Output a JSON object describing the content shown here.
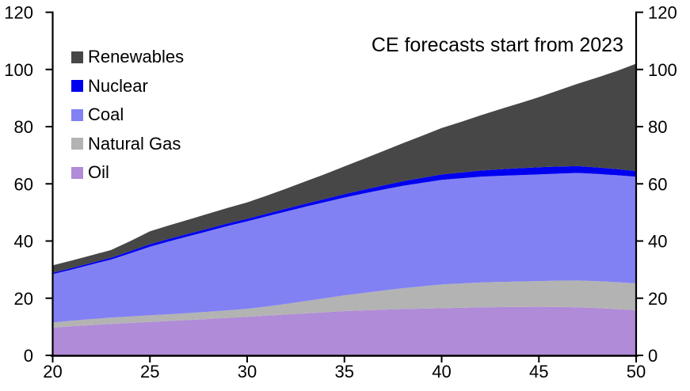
{
  "annotation": "CE forecasts start from 2023",
  "chart_data": {
    "type": "area",
    "stacked": true,
    "title": "",
    "xlabel": "",
    "ylabel": "",
    "grid": false,
    "dual_y_axis": true,
    "legend_position": "top-left",
    "x_range": [
      20,
      50
    ],
    "y_range": [
      0,
      120
    ],
    "x_ticks": [
      "20",
      "25",
      "30",
      "35",
      "40",
      "45",
      "50"
    ],
    "y_ticks": [
      "0",
      "20",
      "40",
      "60",
      "80",
      "100",
      "120"
    ],
    "x": [
      20,
      21,
      22,
      23,
      24,
      25,
      26,
      27,
      28,
      29,
      30,
      31,
      32,
      33,
      34,
      35,
      36,
      37,
      38,
      39,
      40,
      41,
      42,
      43,
      44,
      45,
      46,
      47,
      48,
      49,
      50
    ],
    "series": [
      {
        "name": "Oil",
        "color": "#b08bd8",
        "values": [
          9.7,
          10.2,
          10.6,
          11.0,
          11.35,
          11.7,
          12.05,
          12.4,
          12.75,
          13.1,
          13.5,
          13.9,
          14.3,
          14.7,
          15.1,
          15.5,
          15.75,
          16.0,
          16.2,
          16.35,
          16.5,
          16.65,
          16.8,
          16.9,
          16.95,
          17.0,
          16.95,
          16.8,
          16.55,
          16.2,
          15.8
        ]
      },
      {
        "name": "Natural Gas",
        "color": "#b3b3b3",
        "values": [
          1.8,
          1.95,
          2.1,
          2.2,
          2.25,
          2.3,
          2.35,
          2.4,
          2.5,
          2.65,
          2.8,
          3.2,
          3.7,
          4.3,
          4.9,
          5.5,
          6.1,
          6.7,
          7.3,
          7.8,
          8.3,
          8.5,
          8.7,
          8.8,
          8.9,
          9.0,
          9.2,
          9.4,
          9.4,
          9.4,
          9.4
        ]
      },
      {
        "name": "Coal",
        "color": "#8181f3",
        "values": [
          16.9,
          17.9,
          19.1,
          20.3,
          22.1,
          24.0,
          25.5,
          26.9,
          28.2,
          29.5,
          30.6,
          31.5,
          32.3,
          33.0,
          33.6,
          34.2,
          34.8,
          35.3,
          35.8,
          36.2,
          36.6,
          36.8,
          37.0,
          37.1,
          37.2,
          37.3,
          37.4,
          37.6,
          37.5,
          37.4,
          37.3
        ]
      },
      {
        "name": "Nuclear",
        "color": "#0000f0",
        "values": [
          0.5,
          0.55,
          0.6,
          0.65,
          0.8,
          0.9,
          0.9,
          0.9,
          0.9,
          0.9,
          0.9,
          0.95,
          1.0,
          1.05,
          1.1,
          1.2,
          1.3,
          1.45,
          1.6,
          1.75,
          1.9,
          2.0,
          2.15,
          2.3,
          2.4,
          2.5,
          2.5,
          2.4,
          2.3,
          2.15,
          2.0
        ]
      },
      {
        "name": "Renewables",
        "color": "#474747",
        "values": [
          2.6,
          2.6,
          2.6,
          2.7,
          3.5,
          4.5,
          4.7,
          4.9,
          5.2,
          5.45,
          5.7,
          6.3,
          7.0,
          7.8,
          8.7,
          9.7,
          10.8,
          12.0,
          13.3,
          14.7,
          16.2,
          17.7,
          19.3,
          21.0,
          22.7,
          24.5,
          26.6,
          28.8,
          31.4,
          34.3,
          37.5
        ]
      }
    ],
    "legend_order": [
      "Renewables",
      "Nuclear",
      "Coal",
      "Natural Gas",
      "Oil"
    ]
  }
}
